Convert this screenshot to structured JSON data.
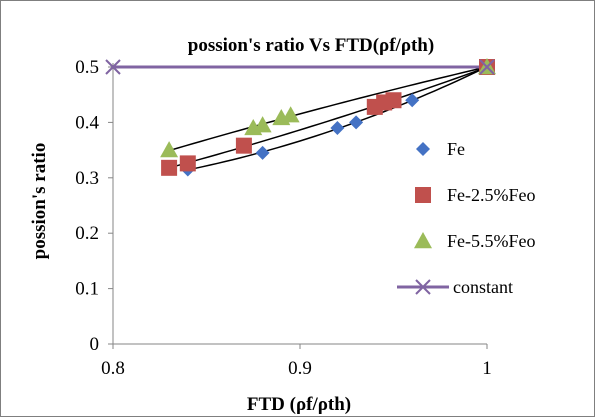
{
  "chart_data": {
    "type": "scatter",
    "title": "possion's ratio Vs  FTD(ρf/ρth)",
    "xlabel": "FTD (ρf/ρth)",
    "ylabel": "possion's ratio",
    "xlim": [
      0.8,
      1.0
    ],
    "ylim": [
      0,
      0.5
    ],
    "x_ticks": [
      "0.8",
      "0.9",
      "1"
    ],
    "y_ticks": [
      "0",
      "0.1",
      "0.2",
      "0.3",
      "0.4",
      "0.5"
    ],
    "x_tick_values": [
      0.8,
      0.9,
      1.0
    ],
    "y_tick_values": [
      0,
      0.1,
      0.2,
      0.3,
      0.4,
      0.5
    ],
    "grid": false,
    "legend_position": "right",
    "series": [
      {
        "name": "Fe",
        "marker": "diamond",
        "color": "#4472C4",
        "x": [
          0.84,
          0.88,
          0.92,
          0.93,
          0.96,
          1.0
        ],
        "y": [
          0.315,
          0.345,
          0.39,
          0.4,
          0.44,
          0.5
        ],
        "trendline": true
      },
      {
        "name": "Fe-2.5%Feo",
        "marker": "square",
        "color": "#C0504D",
        "x": [
          0.83,
          0.84,
          0.87,
          0.94,
          0.945,
          0.95,
          1.0
        ],
        "y": [
          0.318,
          0.326,
          0.358,
          0.428,
          0.436,
          0.44,
          0.5
        ],
        "trendline": true
      },
      {
        "name": "Fe-5.5%Feo",
        "marker": "triangle",
        "color": "#9BBB59",
        "x": [
          0.83,
          0.875,
          0.88,
          0.89,
          0.895,
          1.0
        ],
        "y": [
          0.35,
          0.39,
          0.395,
          0.408,
          0.413,
          0.5
        ],
        "trendline": true
      },
      {
        "name": "constant",
        "marker": "x",
        "color": "#8064A2",
        "line": true,
        "x": [
          0.8,
          1.0
        ],
        "y": [
          0.5,
          0.5
        ]
      }
    ]
  }
}
